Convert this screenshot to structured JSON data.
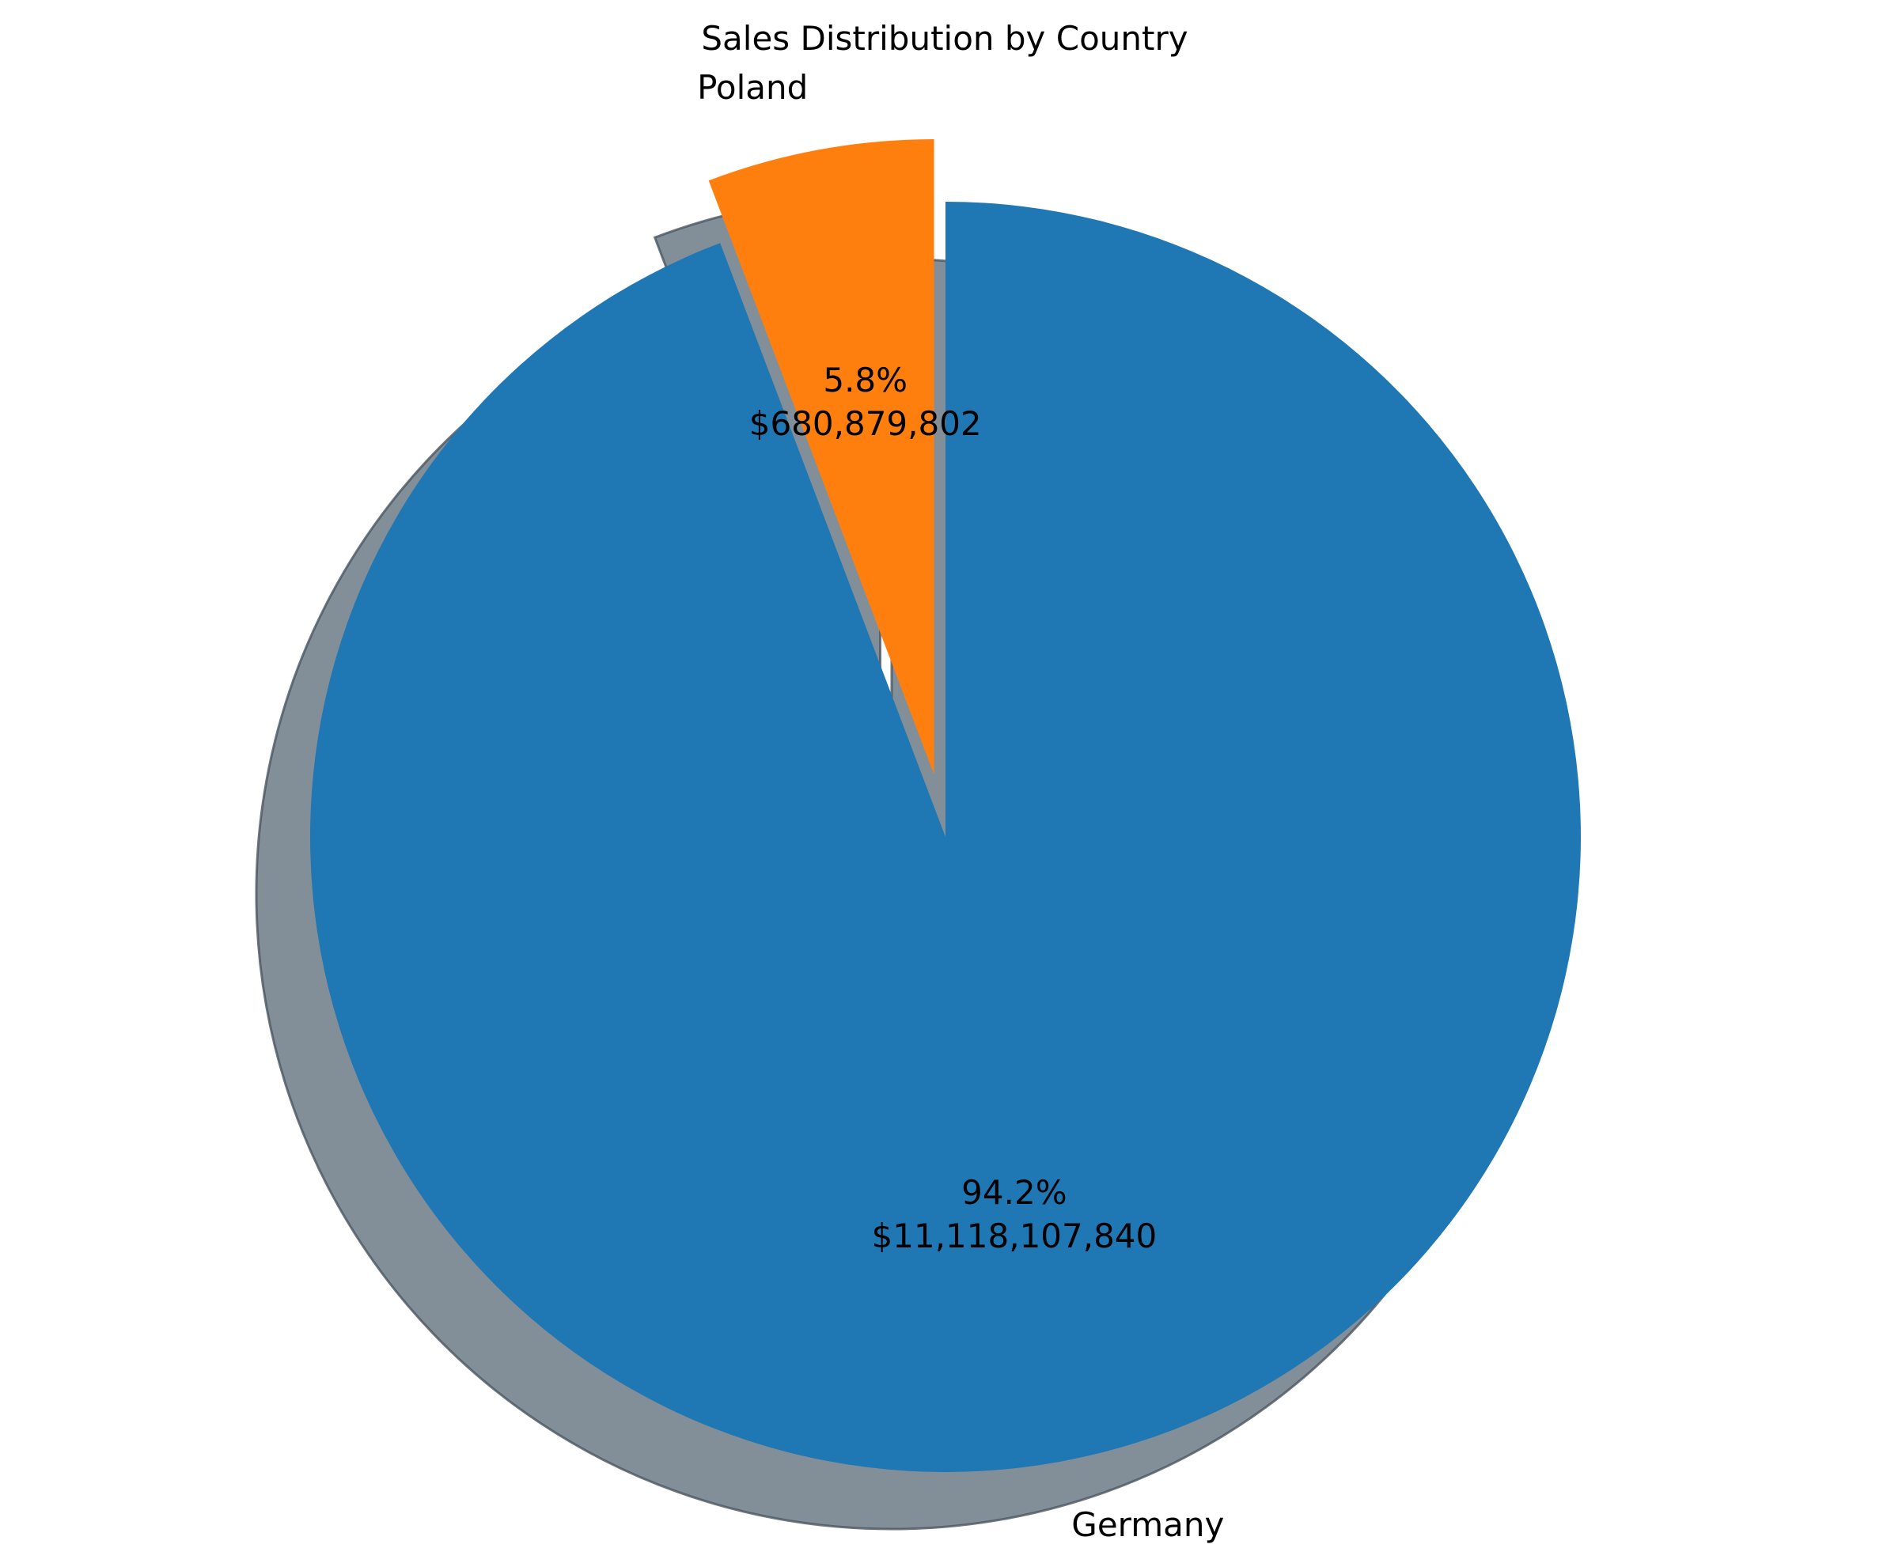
{
  "chart_data": {
    "type": "pie",
    "title": "Sales Distribution by Country",
    "slices": [
      {
        "label": "Germany",
        "value": 11118107840,
        "percent_label": "94.2%",
        "value_label": "$11,118,107,840",
        "color": "#1f77b4",
        "exploded": false
      },
      {
        "label": "Poland",
        "value": 680879802,
        "percent_label": "5.8%",
        "value_label": "$680,879,802",
        "color": "#ff7f0e",
        "exploded": true
      }
    ],
    "start_angle_deg": 90,
    "direction": "clockwise",
    "shadow": true,
    "shadow_color": "#838f98",
    "legend": "none"
  }
}
